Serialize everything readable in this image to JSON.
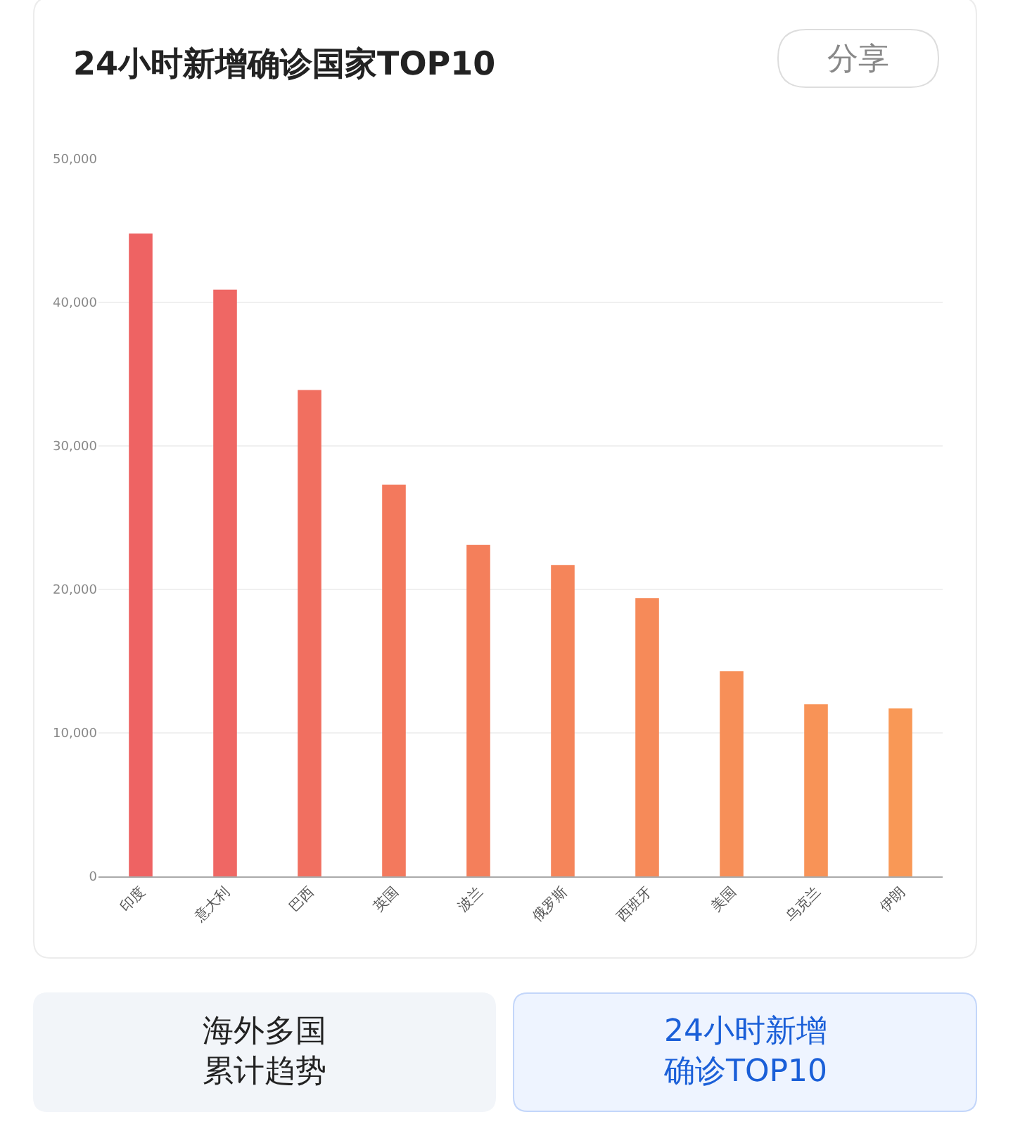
{
  "chart_data": {
    "type": "bar",
    "title": "24小时新增确诊国家TOP10",
    "categories": [
      "印度",
      "意大利",
      "巴西",
      "英国",
      "波兰",
      "俄罗斯",
      "西班牙",
      "美国",
      "乌克兰",
      "伊朗"
    ],
    "values": [
      44800,
      40900,
      33900,
      27300,
      23100,
      21700,
      19400,
      14300,
      12000,
      11700
    ],
    "colors": [
      "#ee6363",
      "#ef6764",
      "#f16f60",
      "#f3795d",
      "#f47f5b",
      "#f5855a",
      "#f68a59",
      "#f78f58",
      "#f89357",
      "#f99856"
    ],
    "ylim": [
      0,
      50000
    ],
    "yticks": [
      0,
      {
        "value": 10000,
        "label": "10,000"
      },
      {
        "value": 20000,
        "label": "20,000"
      },
      {
        "value": 30000,
        "label": "30,000"
      },
      {
        "value": 40000,
        "label": "40,000"
      },
      {
        "value": 50000,
        "label": "50,000"
      }
    ],
    "grid": "y",
    "annotations": [
      "分享",
      "海外多国累计趋势",
      "24小时新增确诊TOP10"
    ]
  }
}
